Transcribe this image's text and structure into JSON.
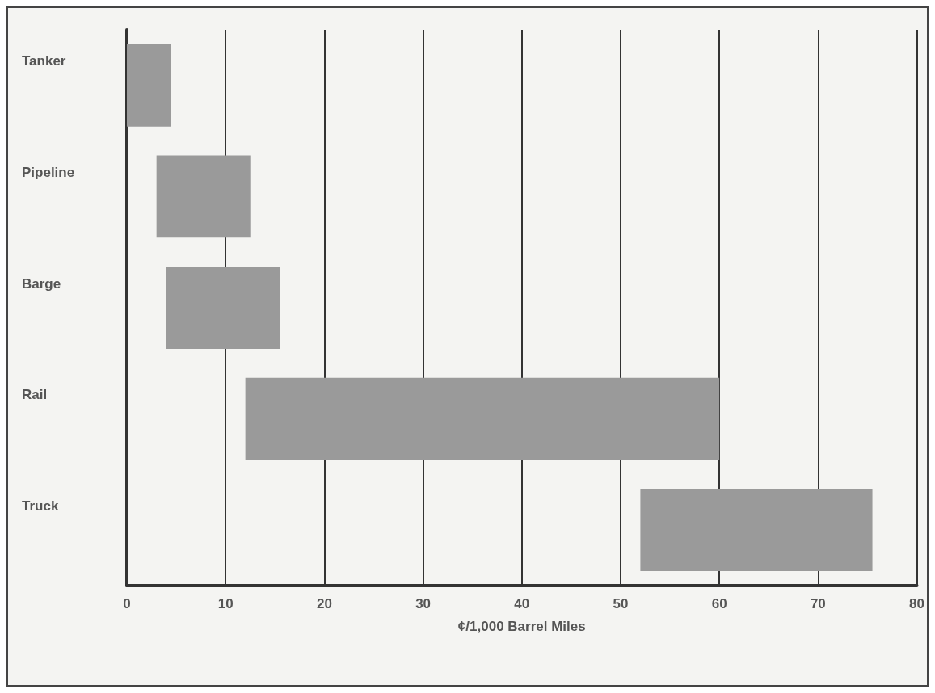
{
  "chart_data": {
    "type": "bar",
    "orientation": "horizontal",
    "xlabel": "¢/1,000 Barrel Miles",
    "categories": [
      "Tanker",
      "Pipeline",
      "Barge",
      "Rail",
      "Truck"
    ],
    "base": [
      0,
      3,
      4,
      12,
      52
    ],
    "values": [
      4.5,
      9.5,
      11.5,
      48,
      23.5
    ],
    "color": "#9a9a9a",
    "xlim": [
      0,
      80
    ],
    "xticks": [
      0,
      10,
      20,
      30,
      40,
      50,
      60,
      70,
      80
    ],
    "grid": "x"
  }
}
